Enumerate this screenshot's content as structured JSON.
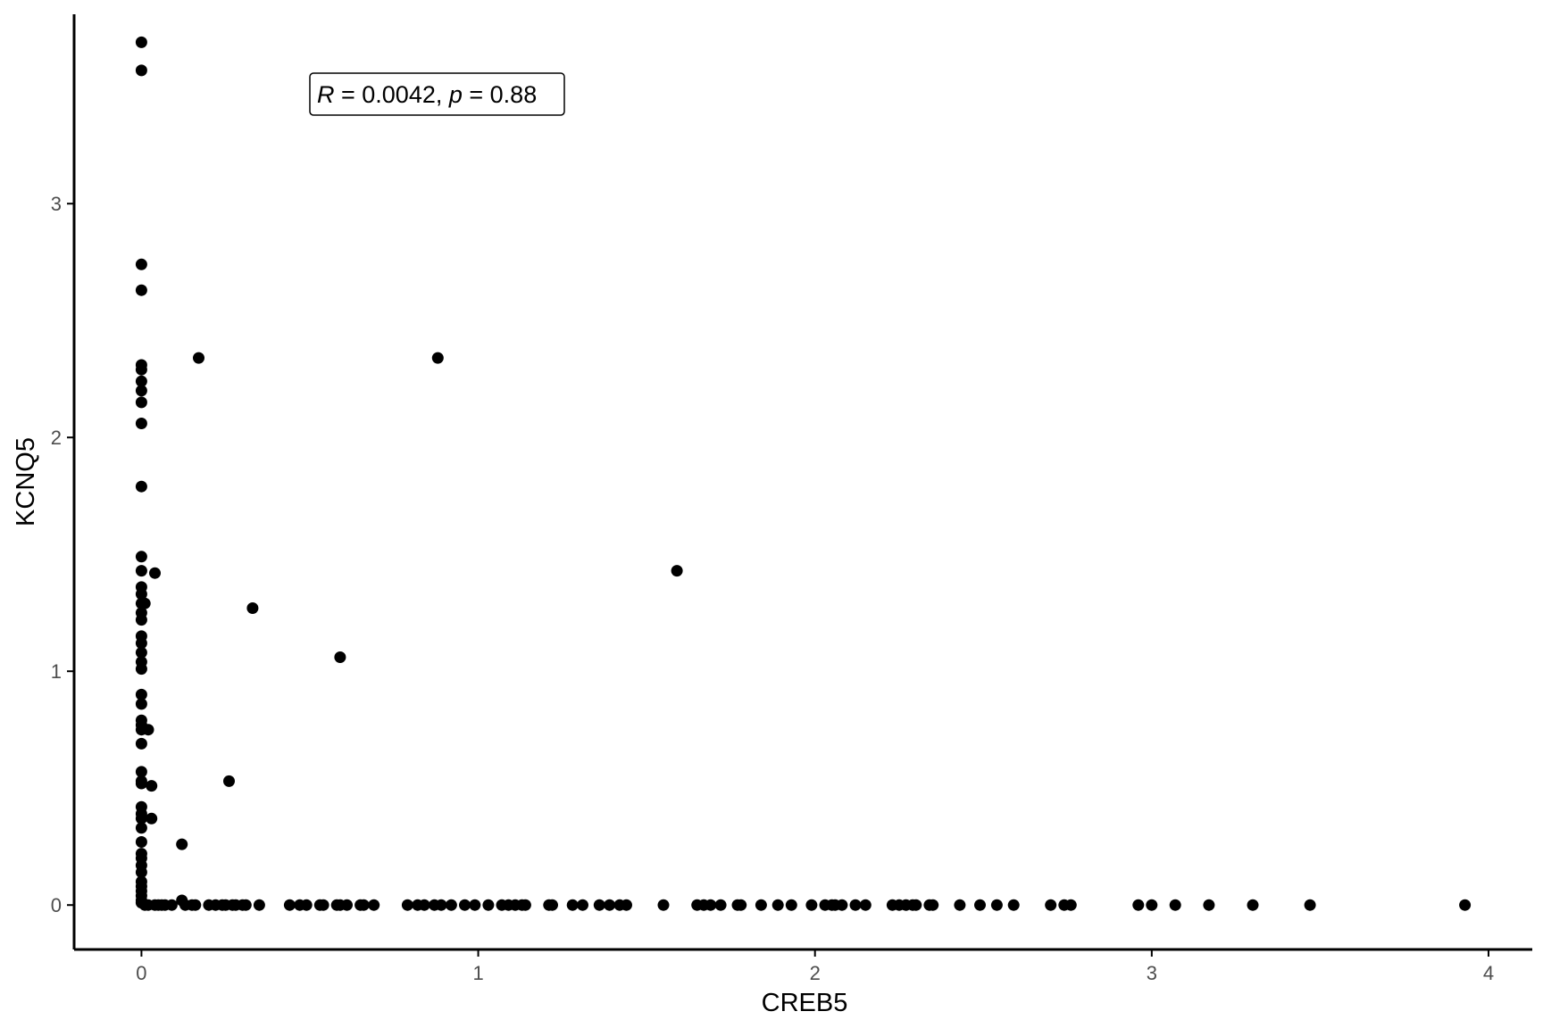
{
  "chart_data": {
    "type": "scatter",
    "xlabel": "CREB5",
    "ylabel": "KCNQ5",
    "xlim": [
      -0.2,
      4.13
    ],
    "ylim": [
      -0.19,
      3.81
    ],
    "xticks": [
      0,
      1,
      2,
      3,
      4
    ],
    "yticks": [
      0,
      1,
      2,
      3
    ],
    "grid": false,
    "point_color": "#000000",
    "annotation": {
      "r_symbol": "R",
      "r_text": " = 0.0042, ",
      "p_symbol": "p",
      "p_text": " = 0.88"
    },
    "points": [
      [
        0,
        3.69
      ],
      [
        0,
        3.57
      ],
      [
        0,
        2.74
      ],
      [
        0,
        2.63
      ],
      [
        0,
        2.31
      ],
      [
        0,
        2.29
      ],
      [
        0,
        2.24
      ],
      [
        0,
        2.2
      ],
      [
        0,
        2.15
      ],
      [
        0,
        2.06
      ],
      [
        0,
        1.79
      ],
      [
        0,
        1.49
      ],
      [
        0,
        1.43
      ],
      [
        0,
        1.36
      ],
      [
        0,
        1.33
      ],
      [
        0,
        1.29
      ],
      [
        0,
        1.25
      ],
      [
        0,
        1.22
      ],
      [
        0,
        1.15
      ],
      [
        0,
        1.12
      ],
      [
        0,
        1.08
      ],
      [
        0,
        1.04
      ],
      [
        0,
        1.01
      ],
      [
        0,
        0.9
      ],
      [
        0,
        0.86
      ],
      [
        0,
        0.79
      ],
      [
        0,
        0.77
      ],
      [
        0,
        0.75
      ],
      [
        0,
        0.69
      ],
      [
        0,
        0.57
      ],
      [
        0,
        0.53
      ],
      [
        0,
        0.52
      ],
      [
        0,
        0.42
      ],
      [
        0,
        0.39
      ],
      [
        0,
        0.37
      ],
      [
        0,
        0.33
      ],
      [
        0,
        0.27
      ],
      [
        0,
        0.22
      ],
      [
        0,
        0.2
      ],
      [
        0,
        0.17
      ],
      [
        0,
        0.14
      ],
      [
        0,
        0.1
      ],
      [
        0,
        0.08
      ],
      [
        0,
        0.06
      ],
      [
        0,
        0.04
      ],
      [
        0,
        0.02
      ],
      [
        0,
        0.01
      ],
      [
        0.01,
        1.29
      ],
      [
        0.02,
        0.75
      ],
      [
        0.03,
        0.51
      ],
      [
        0.03,
        0.37
      ],
      [
        0.04,
        1.42
      ],
      [
        0.12,
        0.26
      ],
      [
        0.12,
        0.02
      ],
      [
        0.17,
        2.34
      ],
      [
        0.26,
        0.53
      ],
      [
        0.33,
        1.27
      ],
      [
        0.59,
        1.06
      ],
      [
        0.88,
        2.34
      ],
      [
        1.59,
        1.43
      ],
      [
        0.01,
        0
      ],
      [
        0.02,
        0
      ],
      [
        0.04,
        0
      ],
      [
        0.05,
        0
      ],
      [
        0.06,
        0
      ],
      [
        0.07,
        0
      ],
      [
        0.09,
        0
      ],
      [
        0.13,
        0
      ],
      [
        0.15,
        0
      ],
      [
        0.16,
        0
      ],
      [
        0.2,
        0
      ],
      [
        0.22,
        0
      ],
      [
        0.24,
        0
      ],
      [
        0.25,
        0
      ],
      [
        0.27,
        0
      ],
      [
        0.28,
        0
      ],
      [
        0.3,
        0
      ],
      [
        0.31,
        0
      ],
      [
        0.35,
        0
      ],
      [
        0.44,
        0
      ],
      [
        0.47,
        0
      ],
      [
        0.49,
        0
      ],
      [
        0.53,
        0
      ],
      [
        0.54,
        0
      ],
      [
        0.58,
        0
      ],
      [
        0.59,
        0
      ],
      [
        0.61,
        0
      ],
      [
        0.65,
        0
      ],
      [
        0.66,
        0
      ],
      [
        0.69,
        0
      ],
      [
        0.79,
        0
      ],
      [
        0.82,
        0
      ],
      [
        0.84,
        0
      ],
      [
        0.87,
        0
      ],
      [
        0.89,
        0
      ],
      [
        0.92,
        0
      ],
      [
        0.96,
        0
      ],
      [
        0.99,
        0
      ],
      [
        1.03,
        0
      ],
      [
        1.07,
        0
      ],
      [
        1.09,
        0
      ],
      [
        1.11,
        0
      ],
      [
        1.13,
        0
      ],
      [
        1.14,
        0
      ],
      [
        1.21,
        0
      ],
      [
        1.22,
        0
      ],
      [
        1.28,
        0
      ],
      [
        1.31,
        0
      ],
      [
        1.36,
        0
      ],
      [
        1.39,
        0
      ],
      [
        1.42,
        0
      ],
      [
        1.44,
        0
      ],
      [
        1.55,
        0
      ],
      [
        1.65,
        0
      ],
      [
        1.67,
        0
      ],
      [
        1.69,
        0
      ],
      [
        1.72,
        0
      ],
      [
        1.77,
        0
      ],
      [
        1.78,
        0
      ],
      [
        1.84,
        0
      ],
      [
        1.89,
        0
      ],
      [
        1.93,
        0
      ],
      [
        1.99,
        0
      ],
      [
        2.03,
        0
      ],
      [
        2.05,
        0
      ],
      [
        2.06,
        0
      ],
      [
        2.08,
        0
      ],
      [
        2.12,
        0
      ],
      [
        2.15,
        0
      ],
      [
        2.23,
        0
      ],
      [
        2.25,
        0
      ],
      [
        2.27,
        0
      ],
      [
        2.29,
        0
      ],
      [
        2.3,
        0
      ],
      [
        2.34,
        0
      ],
      [
        2.35,
        0
      ],
      [
        2.43,
        0
      ],
      [
        2.49,
        0
      ],
      [
        2.54,
        0
      ],
      [
        2.59,
        0
      ],
      [
        2.7,
        0
      ],
      [
        2.74,
        0
      ],
      [
        2.76,
        0
      ],
      [
        2.96,
        0
      ],
      [
        3.0,
        0
      ],
      [
        3.07,
        0
      ],
      [
        3.17,
        0
      ],
      [
        3.3,
        0
      ],
      [
        3.47,
        0
      ],
      [
        3.93,
        0
      ]
    ]
  }
}
